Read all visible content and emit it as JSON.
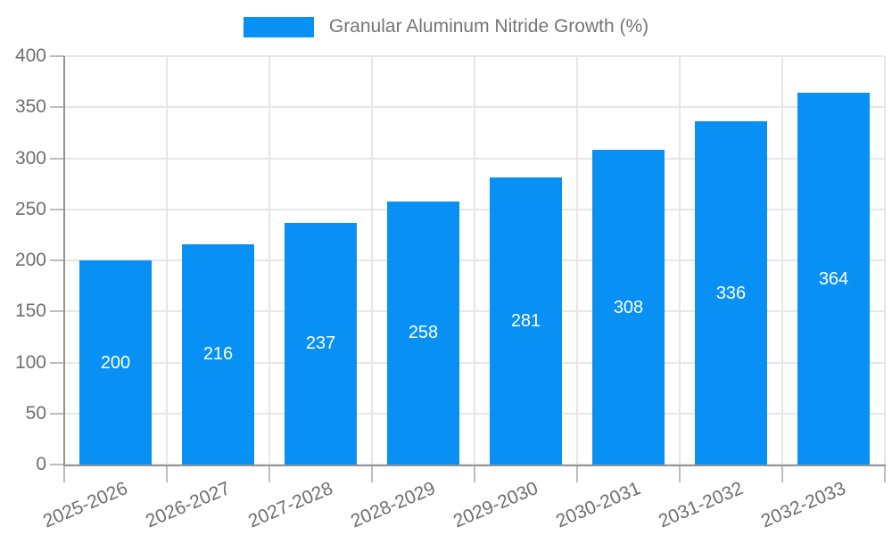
{
  "colors": {
    "bar": "#0990f5",
    "grid": "#e7e7e7",
    "axis": "#949494",
    "tick": "#bdbdbd",
    "label_text": "#6f6f6f",
    "legend_text": "#757575",
    "value_label": "#ffffff",
    "background": "#ffffff"
  },
  "chart_data": {
    "type": "bar",
    "title": "Granular Aluminum Nitride Growth (%)",
    "legend": [
      "Granular Aluminum Nitride Growth (%)"
    ],
    "legend_position": "top-center",
    "categories": [
      "2025-2026",
      "2026-2027",
      "2027-2028",
      "2028-2029",
      "2029-2030",
      "2030-2031",
      "2031-2032",
      "2032-2033"
    ],
    "values": [
      200,
      216,
      237,
      258,
      281,
      308,
      336,
      364
    ],
    "bar_labels": [
      "200",
      "216",
      "237",
      "258",
      "281",
      "308",
      "336",
      "364"
    ],
    "xlabel": "",
    "ylabel": "",
    "ylim": [
      0,
      400
    ],
    "yticks": [
      0,
      50,
      100,
      150,
      200,
      250,
      300,
      350,
      400
    ],
    "grid": true,
    "x_label_rotation_deg": -23,
    "bar_label_position": "center-inside"
  }
}
